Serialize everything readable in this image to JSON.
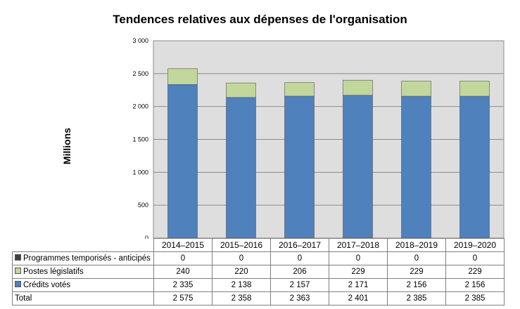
{
  "chart_data": {
    "type": "bar",
    "stacked": true,
    "title": "Tendences relatives aux dépenses de l'organisation",
    "ylabel": "Millions",
    "xlabel": "",
    "ylim": [
      0,
      3000
    ],
    "yticks": [
      "0",
      "500",
      "1 000",
      "1 500",
      "2 000",
      "2 500",
      "3 000"
    ],
    "ytick_values": [
      0,
      500,
      1000,
      1500,
      2000,
      2500,
      3000
    ],
    "grid": true,
    "categories": [
      "2014–2015",
      "2015–2016",
      "2016–2017",
      "2017–2018",
      "2018–2019",
      "2019–2020"
    ],
    "series": [
      {
        "name": "Programmes temporisés - anticipés",
        "color": "#404040",
        "values": [
          0,
          0,
          0,
          0,
          0,
          0
        ],
        "labels": [
          "0",
          "0",
          "0",
          "0",
          "0",
          "0"
        ]
      },
      {
        "name": "Postes législatifs",
        "color": "#c3d69b",
        "values": [
          240,
          220,
          206,
          229,
          229,
          229
        ],
        "labels": [
          "240",
          "220",
          "206",
          "229",
          "229",
          "229"
        ]
      },
      {
        "name": "Crédits votés",
        "color": "#4f81bd",
        "values": [
          2335,
          2138,
          2157,
          2171,
          2156,
          2156
        ],
        "labels": [
          "2 335",
          "2 138",
          "2 157",
          "2 171",
          "2 156",
          "2 156"
        ]
      }
    ],
    "totals": {
      "name": "Total",
      "values": [
        2575,
        2358,
        2363,
        2401,
        2385,
        2385
      ],
      "labels": [
        "2 575",
        "2 358",
        "2 363",
        "2 401",
        "2 385",
        "2 385"
      ]
    }
  }
}
